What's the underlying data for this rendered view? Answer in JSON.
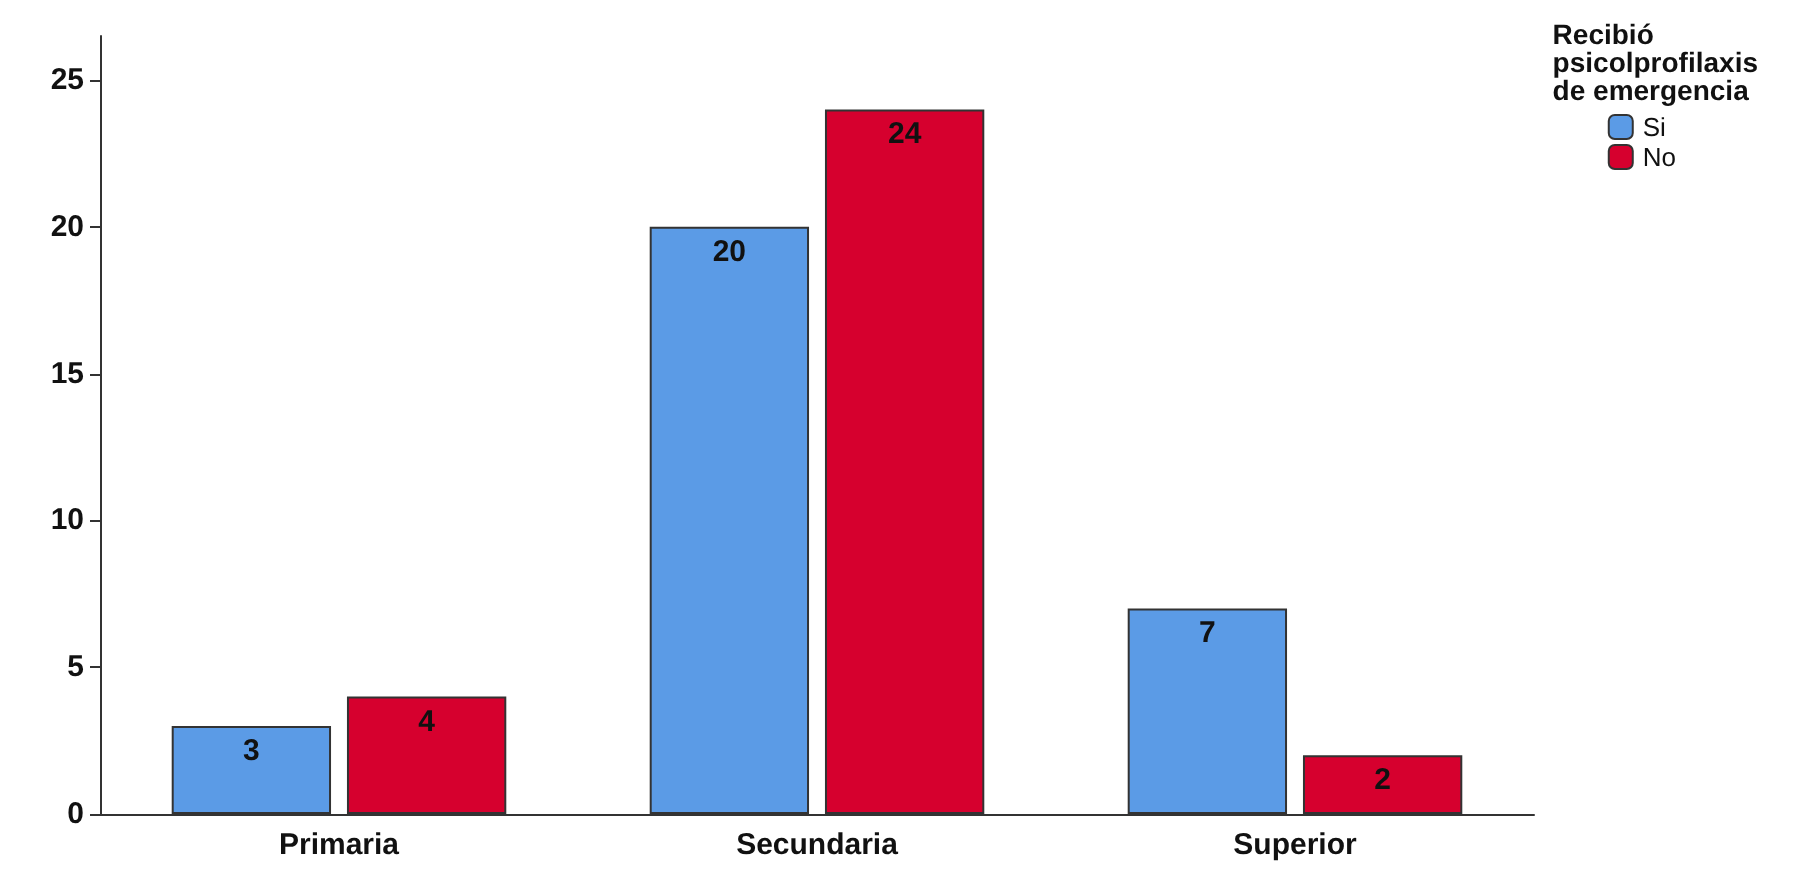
{
  "chart_data": {
    "type": "bar",
    "categories": [
      "Primaria",
      "Secundaria",
      "Superior"
    ],
    "series": [
      {
        "name": "Si",
        "color": "#5b9be6",
        "values": [
          3,
          20,
          7
        ]
      },
      {
        "name": "No",
        "color": "#d6002e",
        "values": [
          4,
          24,
          2
        ]
      }
    ],
    "legend_title": "Recibió\npsicolprofilaxis\nde emergencia",
    "legend": "top right",
    "ylim": [
      0,
      26.5
    ],
    "yticks": [
      0,
      5,
      10,
      15,
      20,
      25
    ],
    "grid": false,
    "data_labels": true
  }
}
